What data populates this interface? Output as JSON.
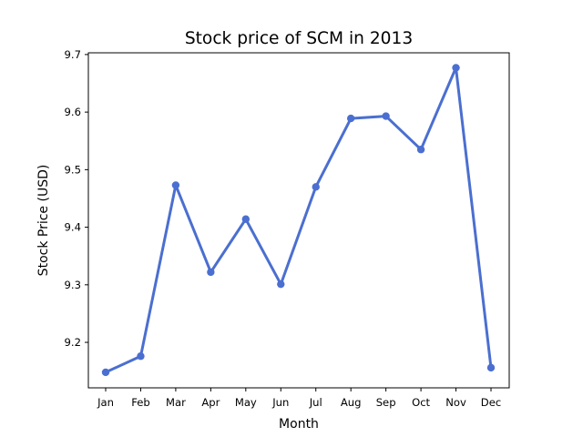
{
  "chart_data": {
    "type": "line",
    "title": "Stock price of SCM in 2013",
    "xlabel": "Month",
    "ylabel": "Stock Price (USD)",
    "categories": [
      "Jan",
      "Feb",
      "Mar",
      "Apr",
      "May",
      "Jun",
      "Jul",
      "Aug",
      "Sep",
      "Oct",
      "Nov",
      "Dec"
    ],
    "series": [
      {
        "values": [
          9.148,
          9.176,
          9.473,
          9.322,
          9.414,
          9.301,
          9.47,
          9.589,
          9.593,
          9.535,
          9.677,
          9.156
        ],
        "color": "#4b6fd0"
      }
    ],
    "yticks": [
      "9.2",
      "9.3",
      "9.4",
      "9.5",
      "9.6",
      "9.7"
    ],
    "ylim": [
      9.121,
      9.703
    ],
    "grid": false,
    "legend": "none"
  }
}
